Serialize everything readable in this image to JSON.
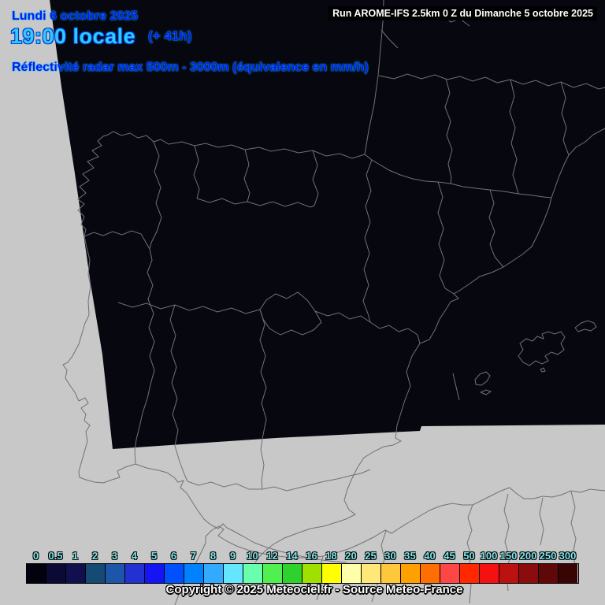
{
  "header": {
    "date": "Lundi 6 octobre 2025",
    "time": "19:00 locale",
    "offset": "(+ 41h)",
    "product": "Réflectivité radar max 500m - 3000m (équivalence en mm/h)",
    "run": "Run AROME-IFS 2.5km 0 Z du Dimanche 5 octobre 2025"
  },
  "footer": {
    "copyright": "Copyright © 2025 Meteociel.fr - Source Meteo-France"
  },
  "colors": {
    "sea_background": "#c8c8c8",
    "radar_domain": "#07070f",
    "border_line": "#71717a",
    "date_text": "#0a1af0",
    "time_text": "#2ecbff",
    "scale_label": "#7fe4ea",
    "run_banner_bg": "#000000",
    "run_banner_text": "#ffffff",
    "copyright_text": "#ffffff"
  },
  "scale": {
    "unit": "mm/h",
    "steps": [
      {
        "label": "0",
        "color": "#02020e"
      },
      {
        "label": "0.5",
        "color": "#0a0a34"
      },
      {
        "label": "1",
        "color": "#10104e"
      },
      {
        "label": "2",
        "color": "#164a74"
      },
      {
        "label": "3",
        "color": "#1c55aa"
      },
      {
        "label": "4",
        "color": "#2330d2"
      },
      {
        "label": "5",
        "color": "#1414f5"
      },
      {
        "label": "6",
        "color": "#0050ff"
      },
      {
        "label": "7",
        "color": "#0082ff"
      },
      {
        "label": "8",
        "color": "#32aaff"
      },
      {
        "label": "9",
        "color": "#64e6ff"
      },
      {
        "label": "10",
        "color": "#69ffaf"
      },
      {
        "label": "12",
        "color": "#50f050"
      },
      {
        "label": "14",
        "color": "#2dd22d"
      },
      {
        "label": "16",
        "color": "#a0e000"
      },
      {
        "label": "18",
        "color": "#ffff00"
      },
      {
        "label": "20",
        "color": "#ffffaa"
      },
      {
        "label": "25",
        "color": "#ffe878"
      },
      {
        "label": "30",
        "color": "#ffc83c"
      },
      {
        "label": "35",
        "color": "#ffa000"
      },
      {
        "label": "40",
        "color": "#ff6e00"
      },
      {
        "label": "45",
        "color": "#ff4646"
      },
      {
        "label": "50",
        "color": "#ff2800"
      },
      {
        "label": "100",
        "color": "#f51111"
      },
      {
        "label": "150",
        "color": "#bb1111"
      },
      {
        "label": "200",
        "color": "#8a0c0c"
      },
      {
        "label": "250",
        "color": "#600707"
      },
      {
        "label": "300",
        "color": "#380404"
      }
    ]
  }
}
